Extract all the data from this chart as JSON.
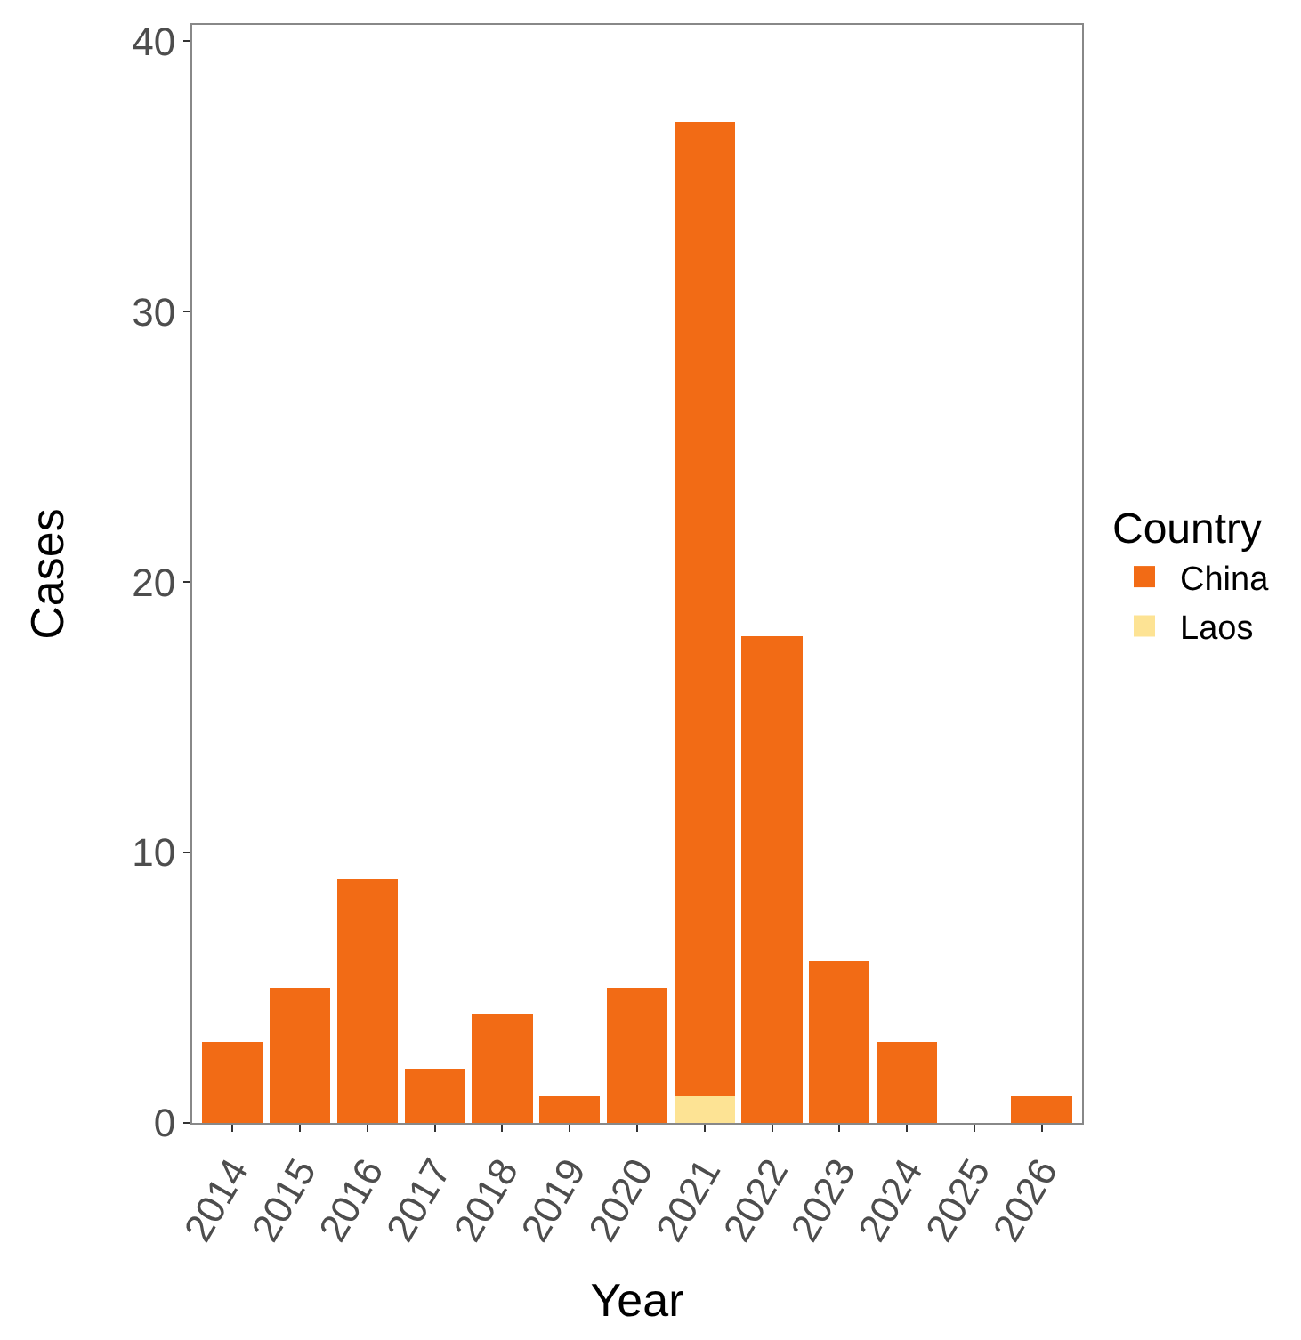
{
  "chart_data": {
    "type": "bar",
    "stacked": true,
    "xlabel": "Year",
    "ylabel": "Cases",
    "legend_title": "Country",
    "categories": [
      "2014",
      "2015",
      "2016",
      "2017",
      "2018",
      "2019",
      "2020",
      "2021",
      "2022",
      "2023",
      "2024",
      "2025",
      "2026"
    ],
    "series": [
      {
        "name": "Laos",
        "color": "#fde394",
        "values": [
          null,
          null,
          null,
          null,
          null,
          null,
          null,
          1,
          null,
          null,
          null,
          null,
          null
        ]
      },
      {
        "name": "China",
        "color": "#f26b15",
        "values": [
          3,
          5,
          9,
          2,
          4,
          1,
          5,
          36,
          18,
          6,
          3,
          0,
          1
        ]
      }
    ],
    "ylim": [
      0,
      40.6
    ],
    "yticks": [
      0,
      10,
      20,
      30,
      40
    ],
    "legend": "right"
  }
}
